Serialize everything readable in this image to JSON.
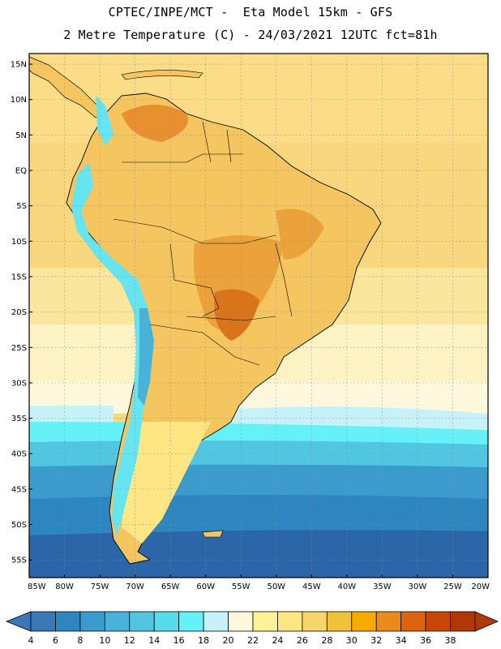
{
  "header": {
    "line1": "CPTEC/INPE/MCT -  Eta Model 15km - GFS",
    "line2": "2 Metre Temperature (C) - 24/03/2021 12UTC fct=81h"
  },
  "map": {
    "lon_range": [
      -85,
      -20
    ],
    "lat_range": [
      -57.5,
      16.5
    ],
    "lat_ticks": [
      {
        "value": 15,
        "label": "15N"
      },
      {
        "value": 10,
        "label": "10N"
      },
      {
        "value": 5,
        "label": "5N"
      },
      {
        "value": 0,
        "label": "EQ"
      },
      {
        "value": -5,
        "label": "5S"
      },
      {
        "value": -10,
        "label": "10S"
      },
      {
        "value": -15,
        "label": "15S"
      },
      {
        "value": -20,
        "label": "20S"
      },
      {
        "value": -25,
        "label": "25S"
      },
      {
        "value": -30,
        "label": "30S"
      },
      {
        "value": -35,
        "label": "35S"
      },
      {
        "value": -40,
        "label": "40S"
      },
      {
        "value": -45,
        "label": "45S"
      },
      {
        "value": -50,
        "label": "50S"
      },
      {
        "value": -55,
        "label": "55S"
      }
    ],
    "lon_ticks": [
      {
        "value": -85,
        "label": "85W"
      },
      {
        "value": -80,
        "label": "80W"
      },
      {
        "value": -75,
        "label": "75W"
      },
      {
        "value": -70,
        "label": "70W"
      },
      {
        "value": -65,
        "label": "65W"
      },
      {
        "value": -60,
        "label": "60W"
      },
      {
        "value": -55,
        "label": "55W"
      },
      {
        "value": -50,
        "label": "50W"
      },
      {
        "value": -45,
        "label": "45W"
      },
      {
        "value": -40,
        "label": "40W"
      },
      {
        "value": -35,
        "label": "35W"
      },
      {
        "value": -30,
        "label": "30W"
      },
      {
        "value": -25,
        "label": "25W"
      },
      {
        "value": -20,
        "label": "20W"
      }
    ],
    "grid": true
  },
  "colorbar": {
    "labels": [
      "4",
      "6",
      "8",
      "10",
      "12",
      "14",
      "16",
      "18",
      "20",
      "22",
      "24",
      "26",
      "28",
      "30",
      "32",
      "34",
      "36",
      "38"
    ],
    "colors": [
      "#3a79b5",
      "#2e86c1",
      "#3a9bcc",
      "#48b2d8",
      "#50c6e0",
      "#56dbe8",
      "#66f0f8",
      "#c8f2fa",
      "#fff8dc",
      "#fff296",
      "#fde683",
      "#f8d568",
      "#f0c23a",
      "#f5ab00",
      "#eb8a1a",
      "#dc6410",
      "#c8460a",
      "#b03808"
    ]
  },
  "colors": {
    "ocean_tropical": "#f9d77f",
    "land_warm": "#f5c560",
    "land_hot": "#eba23a",
    "andes_cold": "#66e4f0",
    "ocean_south": "#2e7fbd",
    "ocean_deep": "#285ea0"
  }
}
